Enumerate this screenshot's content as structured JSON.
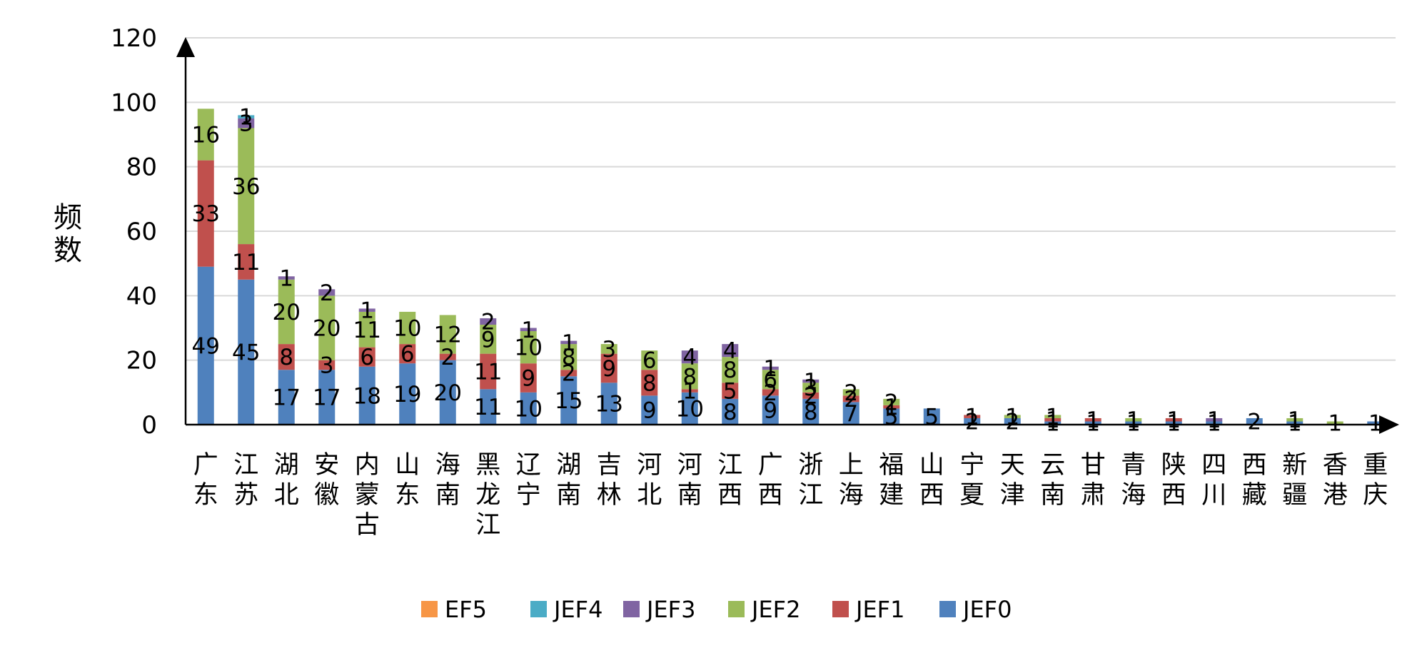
{
  "chart_data": {
    "type": "bar",
    "stacked": true,
    "title": "",
    "xlabel": "",
    "ylabel": "频数",
    "ylim": [
      0,
      120
    ],
    "yticks": [
      0,
      20,
      40,
      60,
      80,
      100,
      120
    ],
    "grid": true,
    "legend_position": "bottom",
    "categories": [
      "广东",
      "江苏",
      "湖北",
      "安徽",
      "内蒙古",
      "山东",
      "海南",
      "黑龙江",
      "辽宁",
      "湖南",
      "吉林",
      "河北",
      "河南",
      "江西",
      "广西",
      "浙江",
      "上海",
      "福建",
      "山西",
      "宁夏",
      "天津",
      "云南",
      "甘肃",
      "青海",
      "陕西",
      "四川",
      "西藏",
      "新疆",
      "香港",
      "重庆"
    ],
    "series": [
      {
        "name": "JEF0",
        "color": "#4f81bd",
        "values": [
          49,
          45,
          17,
          17,
          18,
          19,
          20,
          11,
          10,
          15,
          13,
          9,
          10,
          8,
          9,
          8,
          7,
          5,
          5,
          2,
          2,
          1,
          1,
          1,
          1,
          1,
          2,
          1,
          0,
          1
        ]
      },
      {
        "name": "JEF1",
        "color": "#c0504d",
        "values": [
          33,
          11,
          8,
          3,
          6,
          6,
          2,
          11,
          9,
          2,
          9,
          8,
          1,
          5,
          2,
          2,
          2,
          1,
          0,
          1,
          0,
          1,
          1,
          0,
          1,
          0,
          0,
          0,
          0,
          0
        ]
      },
      {
        "name": "JEF2",
        "color": "#9bbb59",
        "values": [
          16,
          36,
          20,
          20,
          11,
          10,
          12,
          9,
          10,
          8,
          3,
          6,
          8,
          8,
          6,
          3,
          2,
          2,
          0,
          0,
          1,
          1,
          0,
          1,
          0,
          0,
          0,
          1,
          1,
          0
        ]
      },
      {
        "name": "JEF3",
        "color": "#8064a2",
        "values": [
          0,
          3,
          1,
          2,
          1,
          0,
          0,
          2,
          1,
          1,
          0,
          0,
          4,
          4,
          1,
          1,
          0,
          0,
          0,
          0,
          0,
          0,
          0,
          0,
          0,
          1,
          0,
          0,
          0,
          0
        ]
      },
      {
        "name": "JEF4",
        "color": "#4bacc6",
        "values": [
          0,
          1,
          0,
          0,
          0,
          0,
          0,
          0,
          0,
          0,
          0,
          0,
          0,
          0,
          0,
          0,
          0,
          0,
          0,
          0,
          0,
          0,
          0,
          0,
          0,
          0,
          0,
          0,
          0,
          0
        ]
      },
      {
        "name": "EF5",
        "color": "#f79646",
        "values": [
          0,
          0,
          0,
          0,
          0,
          0,
          0,
          0,
          0,
          0,
          0,
          0,
          0,
          0,
          0,
          0,
          0,
          0,
          0,
          0,
          0,
          0,
          0,
          0,
          0,
          0,
          0,
          0,
          0,
          0
        ]
      }
    ],
    "legend_order": [
      "EF5",
      "JEF4",
      "JEF3",
      "JEF2",
      "JEF1",
      "JEF0"
    ]
  }
}
